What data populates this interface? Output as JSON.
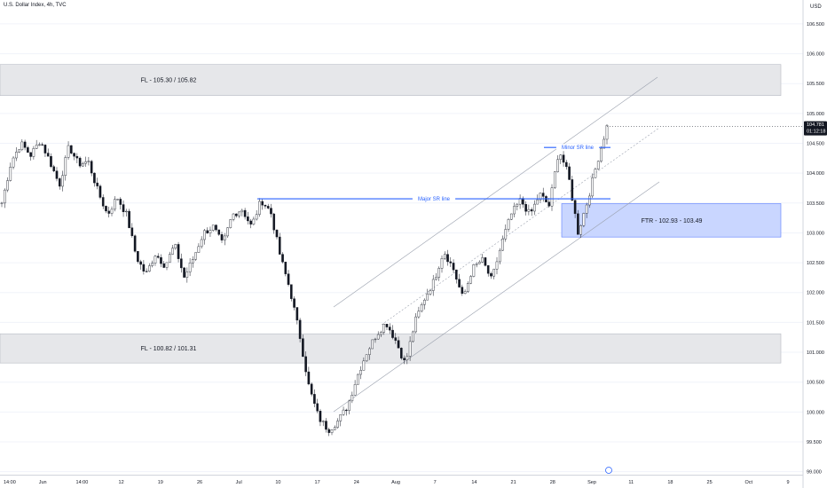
{
  "header": {
    "title": "U.S. Dollar Index, 4h, TVC",
    "currency": "USD"
  },
  "colors": {
    "up": "#ffffff",
    "down": "#131722",
    "zone": "#e6e7ea",
    "ftr_zone": "#c9d6ff",
    "blue_line": "#2962ff",
    "channel": "#9aa0ad",
    "grid": "#f0f3fa",
    "price_badge": "#131722"
  },
  "chart_data": {
    "type": "candlestick",
    "ylim": [
      98.95,
      106.9
    ],
    "y_ticks": [
      "106.500",
      "106.000",
      "105.500",
      "105.000",
      "104.500",
      "104.000",
      "103.500",
      "103.000",
      "102.500",
      "102.000",
      "101.500",
      "101.000",
      "100.500",
      "100.000",
      "99.500",
      "99.000"
    ],
    "x_ticks": [
      "14:00",
      "Jun",
      "14:00",
      "12",
      "19",
      "26",
      "Jul",
      "10",
      "17",
      "24",
      "Aug",
      "7",
      "14",
      "21",
      "28",
      "Sep",
      "11",
      "18",
      "25",
      "Oct",
      "9"
    ],
    "current_price": "104.781",
    "countdown": "01:12:18",
    "zones": [
      {
        "label": "FL - 105.30 / 105.82",
        "low": 105.3,
        "high": 105.82
      },
      {
        "label": "FL - 100.82 / 101.31",
        "low": 100.82,
        "high": 101.31
      },
      {
        "label": "FTR - 102.93 - 103.49",
        "low": 102.93,
        "high": 103.49
      }
    ],
    "lines": [
      {
        "label": "Major SR line",
        "value": 103.57
      },
      {
        "label": "Minor SR line",
        "value": 104.43
      }
    ],
    "candle_anchor_closes": [
      103.5,
      104.2,
      104.5,
      104.3,
      104.55,
      104.2,
      103.8,
      104.45,
      104.15,
      104.2,
      103.7,
      103.3,
      103.6,
      103.3,
      102.6,
      102.3,
      102.65,
      102.45,
      102.8,
      102.25,
      102.6,
      103.0,
      103.1,
      102.8,
      103.3,
      103.4,
      103.1,
      103.55,
      103.35,
      102.6,
      102.05,
      101.3,
      100.4,
      99.9,
      99.7,
      99.85,
      100.1,
      100.6,
      101.0,
      101.3,
      101.5,
      101.2,
      100.8,
      101.5,
      101.9,
      102.2,
      102.7,
      102.4,
      101.9,
      102.4,
      102.55,
      102.2,
      102.8,
      103.3,
      103.55,
      103.3,
      103.65,
      103.45,
      104.4,
      103.95,
      103.0,
      103.55,
      104.2,
      104.78
    ]
  }
}
